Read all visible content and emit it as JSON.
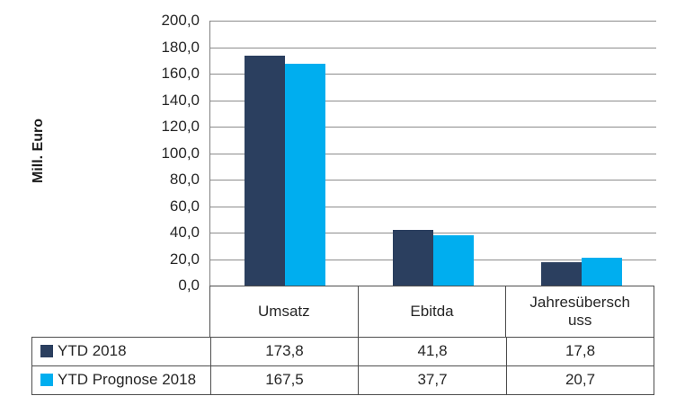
{
  "chart_data": {
    "type": "bar",
    "title": "",
    "ylabel": "Mill. Euro",
    "xlabel": "",
    "categories": [
      "Umsatz",
      "Ebitda",
      "Jahresüberschuss"
    ],
    "series": [
      {
        "name": "YTD 2018",
        "color": "#2b3f5f",
        "values": [
          173.8,
          41.8,
          17.8
        ],
        "values_display": [
          "173,8",
          "41,8",
          "17,8"
        ]
      },
      {
        "name": "YTD Prognose 2018",
        "color": "#00aeef",
        "values": [
          167.5,
          37.7,
          20.7
        ],
        "values_display": [
          "167,5",
          "37,7",
          "20,7"
        ]
      }
    ],
    "ylim": [
      0,
      200
    ],
    "ytick_step": 20,
    "ytick_labels": [
      "200,0",
      "180,0",
      "160,0",
      "140,0",
      "120,0",
      "100,0",
      "80,0",
      "60,0",
      "40,0",
      "20,0",
      "0,0"
    ],
    "grid": true,
    "legend_position": "bottom-left-table",
    "colors": {
      "gridline": "#8c8c8c",
      "axis": "#808080",
      "table_border": "#4d4d4d",
      "text": "#262626",
      "background": "#ffffff"
    }
  }
}
